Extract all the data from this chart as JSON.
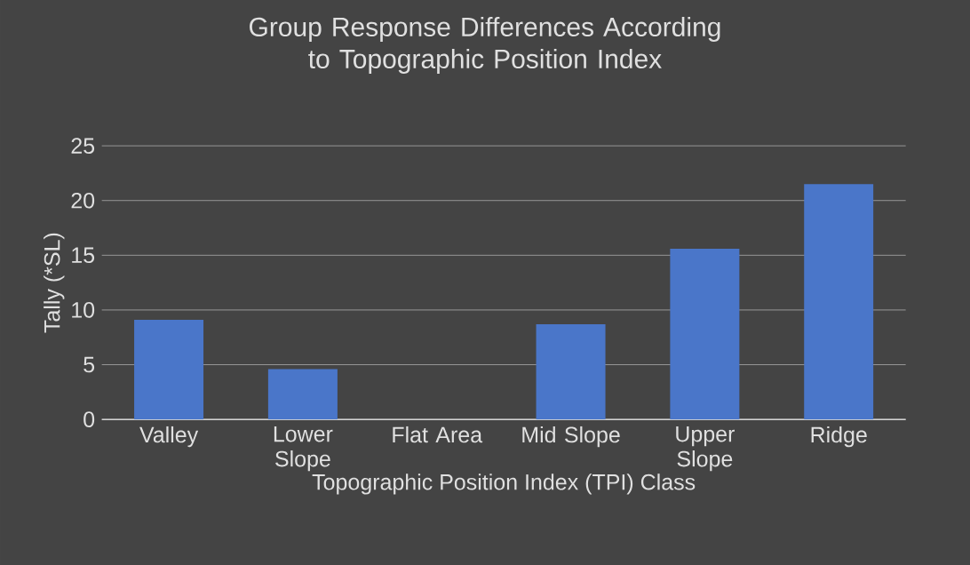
{
  "chart_data": {
    "type": "bar",
    "title": "Group Response Differences According to Topographic Position Index",
    "xlabel": "Topographic Position Index (TPI) Class",
    "ylabel": "Tally (*SL)",
    "categories": [
      "Valley",
      "Lower Slope",
      "Flat Area",
      "Mid Slope",
      "Upper Slope",
      "Ridge"
    ],
    "values": [
      9.1,
      4.6,
      0,
      8.7,
      15.6,
      21.5
    ],
    "color": "#4a76c9",
    "ylim": [
      0,
      25
    ],
    "yticks": [
      0,
      5,
      10,
      15,
      20,
      25
    ],
    "grid": "y"
  }
}
